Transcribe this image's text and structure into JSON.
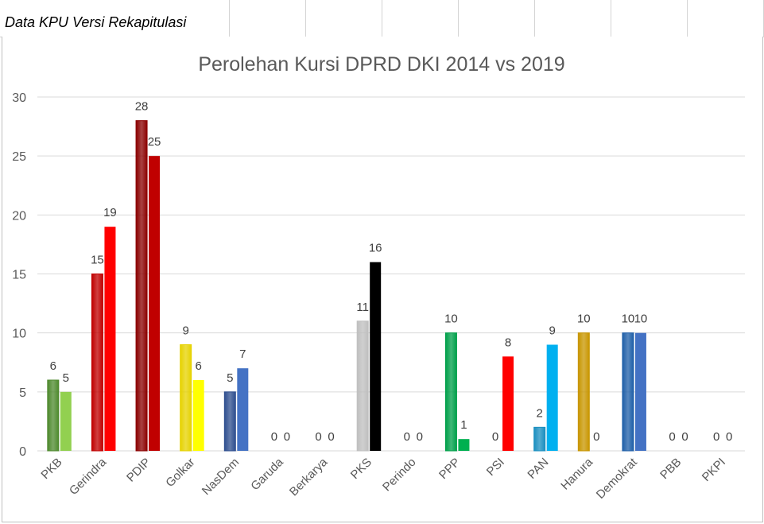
{
  "sheet": {
    "title": "Data KPU Versi Rekapitulasi"
  },
  "chart_data": {
    "type": "bar",
    "title": "Perolehan Kursi DPRD DKI 2014 vs 2019",
    "xlabel": "",
    "ylabel": "",
    "ylim": [
      0,
      30
    ],
    "yticks": [
      0,
      5,
      10,
      15,
      20,
      25,
      30
    ],
    "grid": true,
    "legend": "none",
    "categories": [
      "PKB",
      "Gerindra",
      "PDIP",
      "Golkar",
      "NasDem",
      "Garuda",
      "Berkarya",
      "PKS",
      "Perindo",
      "PPP",
      "PSI",
      "PAN",
      "Hanura",
      "Demokrat",
      "PBB",
      "PKPI"
    ],
    "series": [
      {
        "values": [
          6,
          15,
          28,
          9,
          5,
          0,
          0,
          11,
          0,
          10,
          0,
          2,
          10,
          10,
          0,
          0
        ]
      },
      {
        "values": [
          5,
          19,
          25,
          6,
          7,
          0,
          0,
          16,
          0,
          1,
          8,
          9,
          0,
          10,
          0,
          0
        ]
      }
    ],
    "colors_2014": [
      "#4e8a2e",
      "#c00000",
      "#8b0000",
      "#e6d200",
      "#2f4f8f",
      "#ffffff",
      "#ffffff",
      "#bfbfbf",
      "#ffffff",
      "#00a04a",
      "#ff0000",
      "#1a8fc0",
      "#c89600",
      "#1f5fa8",
      "#ffffff",
      "#ffffff"
    ],
    "colors_2019": [
      "#92d050",
      "#ff0000",
      "#c00000",
      "#ffff00",
      "#4472c4",
      "#ffffff",
      "#ffffff",
      "#000000",
      "#ffffff",
      "#00b050",
      "#ff0000",
      "#00b0f0",
      "#ffc000",
      "#4472c4",
      "#ffffff",
      "#ffffff"
    ]
  }
}
